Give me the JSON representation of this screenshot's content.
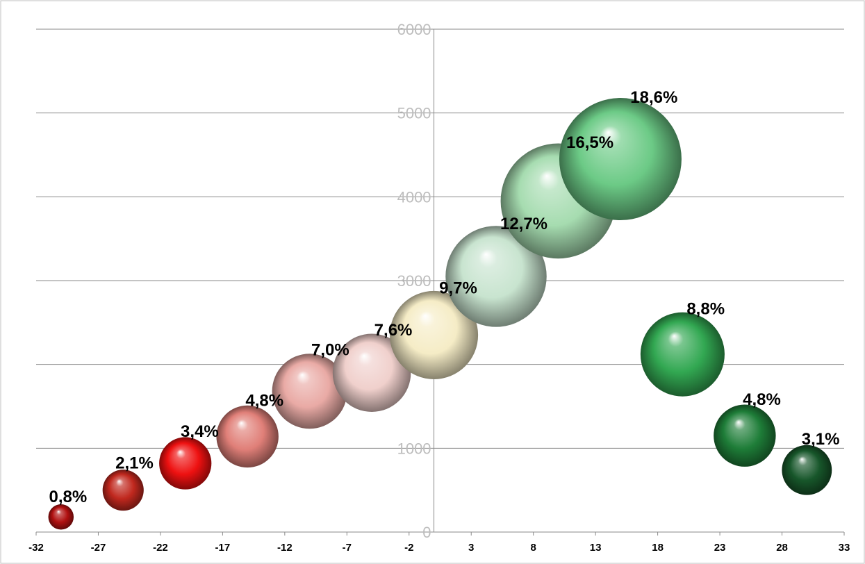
{
  "chart_data": {
    "type": "bubble",
    "title": "",
    "xlabel": "",
    "ylabel": "",
    "xlim": [
      -32,
      33
    ],
    "ylim": [
      0,
      6000
    ],
    "x_ticks": [
      "-32",
      "-27",
      "-22",
      "-17",
      "-12",
      "-7",
      "-2",
      "3",
      "8",
      "13",
      "18",
      "23",
      "28",
      "33"
    ],
    "y_ticks": [
      "0",
      "1000",
      "2000",
      "3000",
      "4000",
      "5000",
      "6000"
    ],
    "grid": true,
    "legend": "none",
    "points": [
      {
        "x": -30,
        "y": 180,
        "size": 0.8,
        "label": "0,8%",
        "color": "#b01010"
      },
      {
        "x": -25,
        "y": 500,
        "size": 2.1,
        "label": "2,1%",
        "color": "#c0281e"
      },
      {
        "x": -20,
        "y": 820,
        "size": 3.4,
        "label": "3,4%",
        "color": "#ee1111"
      },
      {
        "x": -15,
        "y": 1140,
        "size": 4.8,
        "label": "4,8%",
        "color": "#e07f78"
      },
      {
        "x": -10,
        "y": 1680,
        "size": 7.0,
        "label": "7,0%",
        "color": "#e9aaa5"
      },
      {
        "x": -5,
        "y": 1900,
        "size": 7.6,
        "label": "7,6%",
        "color": "#f0d0cc"
      },
      {
        "x": 0,
        "y": 2350,
        "size": 9.7,
        "label": "9,7%",
        "color": "#f5ecc6"
      },
      {
        "x": 5,
        "y": 3050,
        "size": 12.7,
        "label": "12,7%",
        "color": "#c8e4cf"
      },
      {
        "x": 10,
        "y": 3950,
        "size": 16.5,
        "label": "16,5%",
        "color": "#a6dcb0"
      },
      {
        "x": 15,
        "y": 4450,
        "size": 18.6,
        "label": "18,6%",
        "color": "#6cca86"
      },
      {
        "x": 20,
        "y": 2120,
        "size": 8.8,
        "label": "8,8%",
        "color": "#32a852"
      },
      {
        "x": 25,
        "y": 1150,
        "size": 4.8,
        "label": "4,8%",
        "color": "#1e7d38"
      },
      {
        "x": 30,
        "y": 740,
        "size": 3.1,
        "label": "3,1%",
        "color": "#17562a"
      }
    ]
  }
}
